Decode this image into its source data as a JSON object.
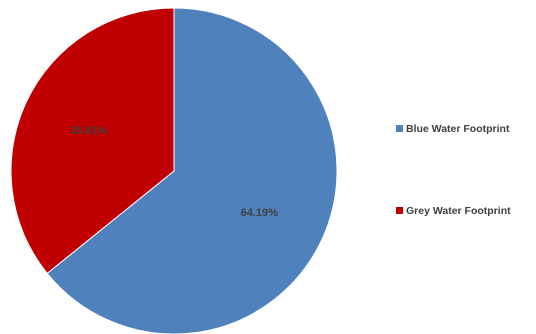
{
  "chart_data": {
    "type": "pie",
    "title": "",
    "slices": [
      {
        "label": "Blue Water Footprint",
        "value": 64.19,
        "display": "64.19%",
        "color": "#4F81BD"
      },
      {
        "label": "Grey Water Footprint",
        "value": 35.81,
        "display": "35.81%",
        "color": "#C00000"
      }
    ],
    "legend": {
      "position": "right",
      "entries": [
        "Blue Water Footprint",
        "Grey Water Footprint"
      ]
    }
  }
}
